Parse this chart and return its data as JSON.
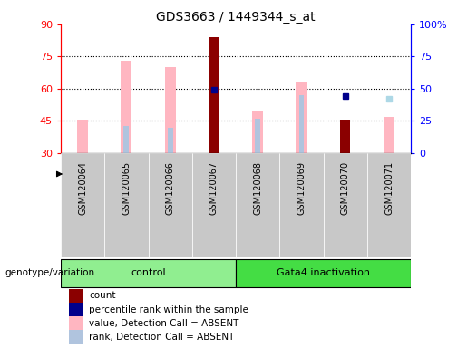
{
  "title": "GDS3663 / 1449344_s_at",
  "samples": [
    "GSM120064",
    "GSM120065",
    "GSM120066",
    "GSM120067",
    "GSM120068",
    "GSM120069",
    "GSM120070",
    "GSM120071"
  ],
  "ylim_left": [
    30,
    90
  ],
  "ylim_right": [
    0,
    100
  ],
  "yticks_left": [
    30,
    45,
    60,
    75,
    90
  ],
  "yticks_right": [
    0,
    25,
    50,
    75,
    100
  ],
  "ytick_labels_right": [
    "0",
    "25",
    "50",
    "75",
    "100%"
  ],
  "grid_lines": [
    45,
    60,
    75
  ],
  "pink_bar_tops": [
    45.5,
    73.0,
    70.0,
    null,
    50.0,
    63.0,
    null,
    47.0
  ],
  "red_bar_tops": [
    null,
    null,
    null,
    84.0,
    null,
    null,
    45.5,
    null
  ],
  "light_blue_bar_tops": [
    null,
    42.5,
    42.0,
    null,
    46.0,
    57.0,
    null,
    null
  ],
  "blue_sq_y": [
    null,
    null,
    null,
    59.5,
    null,
    null,
    56.5,
    null
  ],
  "light_blue_sq_y": [
    null,
    null,
    null,
    null,
    null,
    null,
    null,
    55.5
  ],
  "bar_base": 30,
  "pink_bar_width": 0.25,
  "light_blue_bar_width": 0.12,
  "red_bar_width": 0.22,
  "sq_size": 5,
  "colors": {
    "red_bar": "#8B0000",
    "pink_bar": "#FFB6C1",
    "blue_sq": "#00008B",
    "light_blue_sq": "#ADD8E6",
    "light_blue_bar": "#B0C4DE",
    "left_axis": "red",
    "right_axis": "blue",
    "grid": "black",
    "xtick_bg": "#C8C8C8",
    "group_ctrl": "#90EE90",
    "group_gata": "#44DD44"
  },
  "control_indices": [
    0,
    1,
    2,
    3
  ],
  "gata_indices": [
    4,
    5,
    6,
    7
  ],
  "legend_items": [
    {
      "label": "count",
      "color": "#8B0000"
    },
    {
      "label": "percentile rank within the sample",
      "color": "#00008B"
    },
    {
      "label": "value, Detection Call = ABSENT",
      "color": "#FFB6C1"
    },
    {
      "label": "rank, Detection Call = ABSENT",
      "color": "#B0C4DE"
    }
  ]
}
